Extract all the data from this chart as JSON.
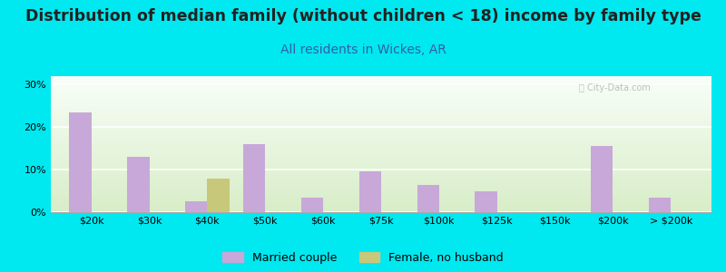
{
  "title": "Distribution of median family (without children < 18) income by family type",
  "subtitle": "All residents in Wickes, AR",
  "categories": [
    "$20k",
    "$30k",
    "$40k",
    "$50k",
    "$60k",
    "$75k",
    "$100k",
    "$125k",
    "$150k",
    "$200k",
    "> $200k"
  ],
  "married_couple": [
    23.5,
    13.0,
    2.5,
    16.0,
    3.5,
    9.5,
    6.5,
    5.0,
    0.0,
    15.5,
    3.5
  ],
  "female_no_husband": [
    0.0,
    0.0,
    8.0,
    0.0,
    0.0,
    0.0,
    0.0,
    0.0,
    0.0,
    0.0,
    0.0
  ],
  "married_color": "#c8a8d8",
  "female_color": "#c8c87a",
  "background_outer": "#00e8f0",
  "chart_bg_top": "#f8fff8",
  "chart_bg_bottom": "#d8edc8",
  "ylim": [
    0,
    32
  ],
  "yticks": [
    0,
    10,
    20,
    30
  ],
  "bar_width": 0.38,
  "title_fontsize": 12.5,
  "subtitle_fontsize": 10,
  "subtitle_color": "#3060aa",
  "title_color": "#222222",
  "tick_fontsize": 8,
  "legend_fontsize": 9
}
